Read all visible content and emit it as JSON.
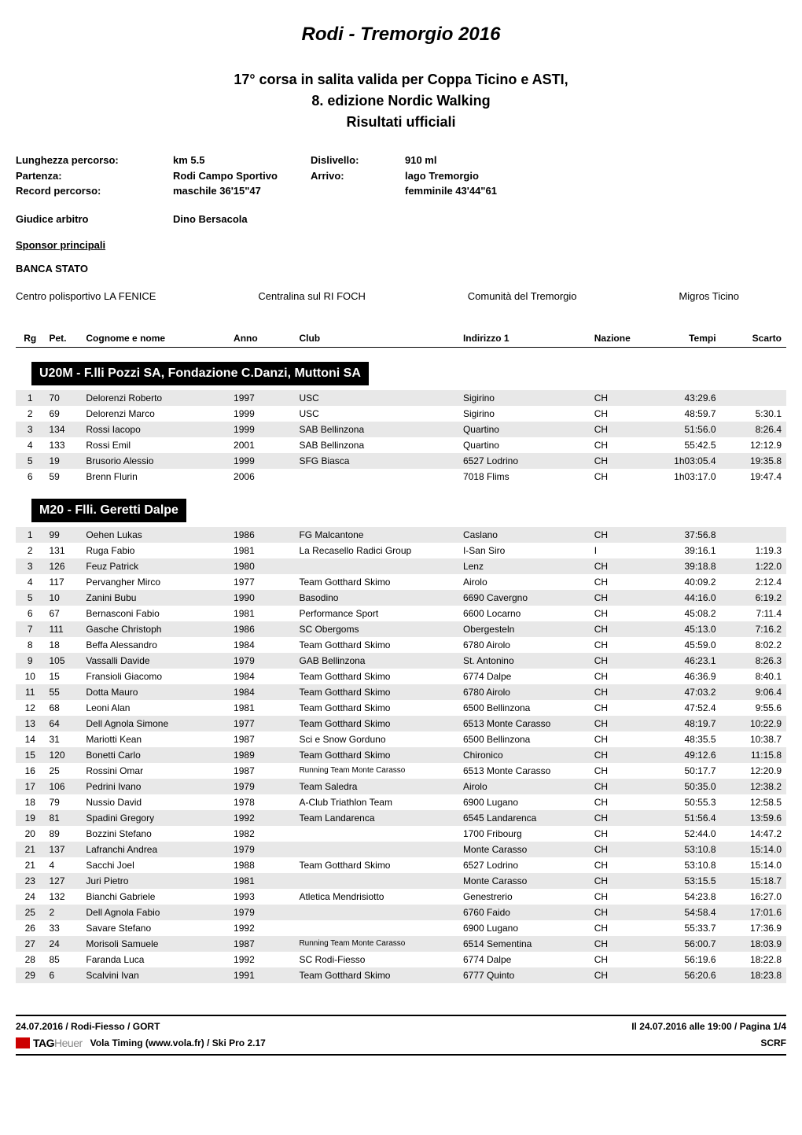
{
  "title": "Rodi - Tremorgio 2016",
  "subtitles": [
    "17° corsa in salita valida per Coppa Ticino e ASTI,",
    "8. edizione Nordic Walking",
    "Risultati ufficiali"
  ],
  "info": {
    "length_label": "Lunghezza percorso:",
    "length_val": "km 5.5",
    "disl_label": "Dislivello:",
    "disl_val": "910 ml",
    "start_label": "Partenza:",
    "start_val": "Rodi Campo Sportivo",
    "arrivo_label": "Arrivo:",
    "arrivo_val": "lago Tremorgio",
    "record_label": "Record percorso:",
    "record_val": "maschile 36'15\"47",
    "record_val2": "femminile 43'44\"61",
    "referee_label": "Giudice arbitro",
    "referee_val": "Dino Bersacola"
  },
  "sponsor_header": "Sponsor principali",
  "banca": "BANCA STATO",
  "sponsors": [
    "Centro polisportivo LA FENICE",
    "Centralina sul RI FOCH",
    "Comunità del Tremorgio",
    "Migros Ticino"
  ],
  "columns": {
    "rg": "Rg",
    "pet": "Pet.",
    "name": "Cognome e nome",
    "anno": "Anno",
    "club": "Club",
    "ind": "Indirizzo 1",
    "naz": "Nazione",
    "tempi": "Tempi",
    "scarto": "Scarto"
  },
  "categories": [
    {
      "title": "U20M - F.lli Pozzi SA, Fondazione C.Danzi, Muttoni SA",
      "rows": [
        {
          "rg": "1",
          "pet": "70",
          "name": "Delorenzi Roberto",
          "anno": "1997",
          "club": "USC",
          "ind": "Sigirino",
          "naz": "CH",
          "tempi": "43:29.6",
          "scarto": ""
        },
        {
          "rg": "2",
          "pet": "69",
          "name": "Delorenzi Marco",
          "anno": "1999",
          "club": "USC",
          "ind": "Sigirino",
          "naz": "CH",
          "tempi": "48:59.7",
          "scarto": "5:30.1"
        },
        {
          "rg": "3",
          "pet": "134",
          "name": "Rossi  Iacopo",
          "anno": "1999",
          "club": "SAB Bellinzona",
          "ind": "Quartino",
          "naz": "CH",
          "tempi": "51:56.0",
          "scarto": "8:26.4"
        },
        {
          "rg": "4",
          "pet": "133",
          "name": "Rossi Emil",
          "anno": "2001",
          "club": "SAB Bellinzona",
          "ind": "Quartino",
          "naz": "CH",
          "tempi": "55:42.5",
          "scarto": "12:12.9"
        },
        {
          "rg": "5",
          "pet": "19",
          "name": "Brusorio Alessio",
          "anno": "1999",
          "club": "SFG Biasca",
          "ind": "6527 Lodrino",
          "naz": "CH",
          "tempi": "1h03:05.4",
          "scarto": "19:35.8"
        },
        {
          "rg": "6",
          "pet": "59",
          "name": "Brenn Flurin",
          "anno": "2006",
          "club": "",
          "ind": "7018 Flims",
          "naz": "CH",
          "tempi": "1h03:17.0",
          "scarto": "19:47.4"
        }
      ]
    },
    {
      "title": "M20 - Flli. Geretti Dalpe",
      "rows": [
        {
          "rg": "1",
          "pet": "99",
          "name": "Oehen Lukas",
          "anno": "1986",
          "club": "FG Malcantone",
          "ind": "Caslano",
          "naz": "CH",
          "tempi": "37:56.8",
          "scarto": ""
        },
        {
          "rg": "2",
          "pet": "131",
          "name": "Ruga Fabio",
          "anno": "1981",
          "club": "La Recasello Radici Group",
          "ind": "I-San Siro",
          "naz": "I",
          "tempi": "39:16.1",
          "scarto": "1:19.3"
        },
        {
          "rg": "3",
          "pet": "126",
          "name": "Feuz Patrick",
          "anno": "1980",
          "club": "",
          "ind": "Lenz",
          "naz": "CH",
          "tempi": "39:18.8",
          "scarto": "1:22.0"
        },
        {
          "rg": "4",
          "pet": "117",
          "name": "Pervangher Mirco",
          "anno": "1977",
          "club": "Team Gotthard Skimo",
          "ind": "Airolo",
          "naz": "CH",
          "tempi": "40:09.2",
          "scarto": "2:12.4"
        },
        {
          "rg": "5",
          "pet": "10",
          "name": "Zanini  Bubu",
          "anno": "1990",
          "club": "Basodino",
          "ind": "6690 Cavergno",
          "naz": "CH",
          "tempi": "44:16.0",
          "scarto": "6:19.2"
        },
        {
          "rg": "6",
          "pet": "67",
          "name": "Bernasconi Fabio",
          "anno": "1981",
          "club": "Performance Sport",
          "ind": "6600 Locarno",
          "naz": "CH",
          "tempi": "45:08.2",
          "scarto": "7:11.4"
        },
        {
          "rg": "7",
          "pet": "111",
          "name": "Gasche Christoph",
          "anno": "1986",
          "club": "SC Obergoms",
          "ind": "Obergesteln",
          "naz": "CH",
          "tempi": "45:13.0",
          "scarto": "7:16.2"
        },
        {
          "rg": "8",
          "pet": "18",
          "name": "Beffa Alessandro",
          "anno": "1984",
          "club": "Team Gotthard Skimo",
          "ind": "6780 Airolo",
          "naz": "CH",
          "tempi": "45:59.0",
          "scarto": "8:02.2"
        },
        {
          "rg": "9",
          "pet": "105",
          "name": "Vassalli Davide",
          "anno": "1979",
          "club": "GAB Bellinzona",
          "ind": "St. Antonino",
          "naz": "CH",
          "tempi": "46:23.1",
          "scarto": "8:26.3"
        },
        {
          "rg": "10",
          "pet": "15",
          "name": "Fransioli Giacomo",
          "anno": "1984",
          "club": "Team Gotthard Skimo",
          "ind": "6774 Dalpe",
          "naz": "CH",
          "tempi": "46:36.9",
          "scarto": "8:40.1"
        },
        {
          "rg": "11",
          "pet": "55",
          "name": "Dotta Mauro",
          "anno": "1984",
          "club": "Team Gotthard Skimo",
          "ind": "6780 Airolo",
          "naz": "CH",
          "tempi": "47:03.2",
          "scarto": "9:06.4"
        },
        {
          "rg": "12",
          "pet": "68",
          "name": "Leoni Alan",
          "anno": "1981",
          "club": "Team Gotthard Skimo",
          "ind": "6500 Bellinzona",
          "naz": "CH",
          "tempi": "47:52.4",
          "scarto": "9:55.6"
        },
        {
          "rg": "13",
          "pet": "64",
          "name": "Dell Agnola Simone",
          "anno": "1977",
          "club": "Team Gotthard Skimo",
          "ind": "6513 Monte Carasso",
          "naz": "CH",
          "tempi": "48:19.7",
          "scarto": "10:22.9"
        },
        {
          "rg": "14",
          "pet": "31",
          "name": "Mariotti Kean",
          "anno": "1987",
          "club": "Sci e Snow Gorduno",
          "ind": "6500 Bellinzona",
          "naz": "CH",
          "tempi": "48:35.5",
          "scarto": "10:38.7"
        },
        {
          "rg": "15",
          "pet": "120",
          "name": "Bonetti Carlo",
          "anno": "1989",
          "club": "Team Gotthard Skimo",
          "ind": "Chironico",
          "naz": "CH",
          "tempi": "49:12.6",
          "scarto": "11:15.8"
        },
        {
          "rg": "16",
          "pet": "25",
          "name": "Rossini Omar",
          "anno": "1987",
          "club": "Running Team Monte Carasso",
          "club_small": true,
          "ind": "6513 Monte Carasso",
          "naz": "CH",
          "tempi": "50:17.7",
          "scarto": "12:20.9"
        },
        {
          "rg": "17",
          "pet": "106",
          "name": "Pedrini Ivano",
          "anno": "1979",
          "club": "Team Saledra",
          "ind": "Airolo",
          "naz": "CH",
          "tempi": "50:35.0",
          "scarto": "12:38.2"
        },
        {
          "rg": "18",
          "pet": "79",
          "name": "Nussio David",
          "anno": "1978",
          "club": "A-Club Triathlon Team",
          "ind": "6900 Lugano",
          "naz": "CH",
          "tempi": "50:55.3",
          "scarto": "12:58.5"
        },
        {
          "rg": "19",
          "pet": "81",
          "name": "Spadini Gregory",
          "anno": "1992",
          "club": "Team Landarenca",
          "ind": "6545 Landarenca",
          "naz": "CH",
          "tempi": "51:56.4",
          "scarto": "13:59.6"
        },
        {
          "rg": "20",
          "pet": "89",
          "name": "Bozzini Stefano",
          "anno": "1982",
          "club": "",
          "ind": "1700 Fribourg",
          "naz": "CH",
          "tempi": "52:44.0",
          "scarto": "14:47.2"
        },
        {
          "rg": "21",
          "pet": "137",
          "name": "Lafranchi Andrea",
          "anno": "1979",
          "club": "",
          "ind": "Monte Carasso",
          "naz": "CH",
          "tempi": "53:10.8",
          "scarto": "15:14.0"
        },
        {
          "rg": "21",
          "pet": "4",
          "name": "Sacchi Joel",
          "anno": "1988",
          "club": "Team Gotthard Skimo",
          "ind": "6527 Lodrino",
          "naz": "CH",
          "tempi": "53:10.8",
          "scarto": "15:14.0"
        },
        {
          "rg": "23",
          "pet": "127",
          "name": "Juri Pietro",
          "anno": "1981",
          "club": "",
          "ind": "Monte Carasso",
          "naz": "CH",
          "tempi": "53:15.5",
          "scarto": "15:18.7"
        },
        {
          "rg": "24",
          "pet": "132",
          "name": "Bianchi Gabriele",
          "anno": "1993",
          "club": "Atletica Mendrisiotto",
          "ind": "Genestrerio",
          "naz": "CH",
          "tempi": "54:23.8",
          "scarto": "16:27.0"
        },
        {
          "rg": "25",
          "pet": "2",
          "name": "Dell Agnola  Fabio",
          "anno": "1979",
          "club": "",
          "ind": "6760 Faido",
          "naz": "CH",
          "tempi": "54:58.4",
          "scarto": "17:01.6"
        },
        {
          "rg": "26",
          "pet": "33",
          "name": "Savare  Stefano",
          "anno": "1992",
          "club": "",
          "ind": "6900 Lugano",
          "naz": "CH",
          "tempi": "55:33.7",
          "scarto": "17:36.9"
        },
        {
          "rg": "27",
          "pet": "24",
          "name": "Morisoli Samuele",
          "anno": "1987",
          "club": "Running Team Monte Carasso",
          "club_small": true,
          "ind": "6514 Sementina",
          "naz": "CH",
          "tempi": "56:00.7",
          "scarto": "18:03.9"
        },
        {
          "rg": "28",
          "pet": "85",
          "name": "Faranda Luca",
          "anno": "1992",
          "club": "SC Rodi-Fiesso",
          "ind": "6774 Dalpe",
          "naz": "CH",
          "tempi": "56:19.6",
          "scarto": "18:22.8"
        },
        {
          "rg": "29",
          "pet": "6",
          "name": "Scalvini Ivan",
          "anno": "1991",
          "club": "Team Gotthard Skimo",
          "ind": "6777 Quinto",
          "naz": "CH",
          "tempi": "56:20.6",
          "scarto": "18:23.8"
        }
      ]
    }
  ],
  "footer": {
    "left": "24.07.2016  /  Rodi-Fiesso  /  GORT",
    "right": "Il 24.07.2016 alle 19:00  /  Pagina 1/4",
    "timing": "Vola Timing (www.vola.fr) / Ski Pro 2.17",
    "scrf": "SCRF",
    "tag1": "TAG",
    "tag2": "Heuer"
  }
}
